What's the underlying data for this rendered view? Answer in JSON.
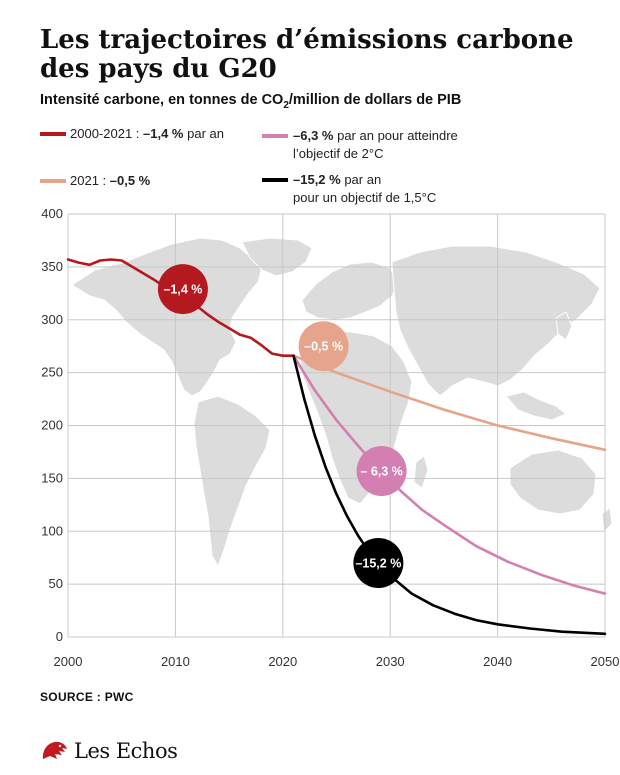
{
  "header": {
    "title": "Les trajectoires d’émissions carbone des pays du G20",
    "subtitle_pre": "Intensité carbone, en tonnes de CO",
    "subtitle_sub": "2",
    "subtitle_post": "/million de dollars de PIB"
  },
  "legend": [
    {
      "color": "#b3191f",
      "text_pre": "2000-2021 : ",
      "text_bold": "–1,4 %",
      "text_post": " par an",
      "line2": ""
    },
    {
      "color": "#e5a48b",
      "text_pre": "2021 : ",
      "text_bold": "–0,5 %",
      "text_post": "",
      "line2": ""
    },
    {
      "color": "#d47fb2",
      "text_pre": "",
      "text_bold": "–6,3 %",
      "text_post": " par an pour atteindre",
      "line2": "l’objectif de 2°C"
    },
    {
      "color": "#000000",
      "text_pre": "",
      "text_bold": "–15,2 %",
      "text_post": " par an",
      "line2": "pour un objectif de 1,5°C"
    }
  ],
  "chart_data": {
    "type": "line",
    "xlim": [
      2000,
      2050
    ],
    "ylim": [
      0,
      400
    ],
    "x_ticks": [
      "2000",
      "2010",
      "2020",
      "2030",
      "2040",
      "2050"
    ],
    "y_ticks": [
      "0",
      "50",
      "100",
      "150",
      "200",
      "250",
      "300",
      "350",
      "400"
    ],
    "grid": true,
    "series": [
      {
        "color": "#b3191f",
        "x": [
          2000,
          2001,
          2002,
          2003,
          2004,
          2005,
          2006,
          2007,
          2008,
          2009,
          2010,
          2011,
          2012,
          2013,
          2014,
          2015,
          2016,
          2017,
          2018,
          2019,
          2020,
          2021
        ],
        "y": [
          357,
          354,
          352,
          356,
          357,
          356,
          350,
          344,
          338,
          331,
          327,
          321,
          313,
          305,
          298,
          292,
          286,
          283,
          276,
          268,
          266,
          266
        ]
      },
      {
        "color": "#e5a48b",
        "x": [
          2021,
          2025,
          2030,
          2035,
          2040,
          2045,
          2050
        ],
        "y": [
          266,
          250,
          232,
          215,
          200,
          188,
          177
        ]
      },
      {
        "color": "#d47fb2",
        "x": [
          2021,
          2023,
          2025,
          2027,
          2029,
          2031,
          2033,
          2035,
          2038,
          2041,
          2044,
          2047,
          2050
        ],
        "y": [
          266,
          233,
          205,
          181,
          158,
          138,
          120,
          106,
          86,
          71,
          59,
          49,
          41
        ]
      },
      {
        "color": "#000000",
        "x": [
          2021,
          2022,
          2023,
          2024,
          2025,
          2026,
          2027,
          2028,
          2029,
          2030,
          2032,
          2034,
          2036,
          2038,
          2040,
          2043,
          2046,
          2050
        ],
        "y": [
          266,
          225,
          190,
          160,
          135,
          114,
          96,
          81,
          68,
          58,
          41,
          30,
          22,
          16,
          12,
          8,
          5,
          3
        ]
      }
    ],
    "annotations": [
      {
        "text": "–1,4 %",
        "x": 2010.7,
        "y": 329,
        "color": "#b3191f",
        "text_color": "#ffffff"
      },
      {
        "text": "–0,5 %",
        "x": 2023.8,
        "y": 275,
        "color": "#e5a48b",
        "text_color": "#ffffff"
      },
      {
        "text": "– 6,3 %",
        "x": 2029.2,
        "y": 157,
        "color": "#d47fb2",
        "text_color": "#ffffff"
      },
      {
        "text": "–15,2 %",
        "x": 2028.9,
        "y": 70,
        "color": "#000000",
        "text_color": "#ffffff"
      }
    ]
  },
  "footer": {
    "source": "SOURCE : PWC",
    "logo_text": "Les Echos"
  }
}
